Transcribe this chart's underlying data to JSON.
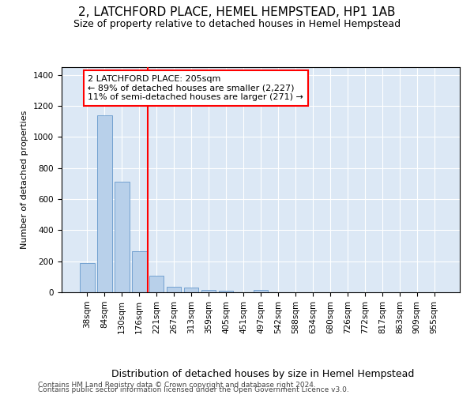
{
  "title": "2, LATCHFORD PLACE, HEMEL HEMPSTEAD, HP1 1AB",
  "subtitle": "Size of property relative to detached houses in Hemel Hempstead",
  "xlabel": "Distribution of detached houses by size in Hemel Hempstead",
  "ylabel": "Number of detached properties",
  "footer1": "Contains HM Land Registry data © Crown copyright and database right 2024.",
  "footer2": "Contains public sector information licensed under the Open Government Licence v3.0.",
  "bar_labels": [
    "38sqm",
    "84sqm",
    "130sqm",
    "176sqm",
    "221sqm",
    "267sqm",
    "313sqm",
    "359sqm",
    "405sqm",
    "451sqm",
    "497sqm",
    "542sqm",
    "588sqm",
    "634sqm",
    "680sqm",
    "726sqm",
    "772sqm",
    "817sqm",
    "863sqm",
    "909sqm",
    "955sqm"
  ],
  "bar_values": [
    190,
    1140,
    710,
    265,
    105,
    35,
    28,
    15,
    12,
    0,
    15,
    0,
    0,
    0,
    0,
    0,
    0,
    0,
    0,
    0,
    0
  ],
  "bar_color": "#b8d0ea",
  "bar_edge_color": "#6699cc",
  "vline_pos": 3.5,
  "vline_color": "red",
  "annotation_text": "2 LATCHFORD PLACE: 205sqm\n← 89% of detached houses are smaller (2,227)\n11% of semi-detached houses are larger (271) →",
  "box_facecolor": "white",
  "box_edgecolor": "red",
  "ylim": [
    0,
    1450
  ],
  "yticks": [
    0,
    200,
    400,
    600,
    800,
    1000,
    1200,
    1400
  ],
  "background_color": "#dce8f5",
  "grid_color": "white",
  "title_fontsize": 11,
  "subtitle_fontsize": 9,
  "ylabel_fontsize": 8,
  "xlabel_fontsize": 9,
  "tick_fontsize": 7.5,
  "annot_fontsize": 8,
  "footer_fontsize": 6.5
}
